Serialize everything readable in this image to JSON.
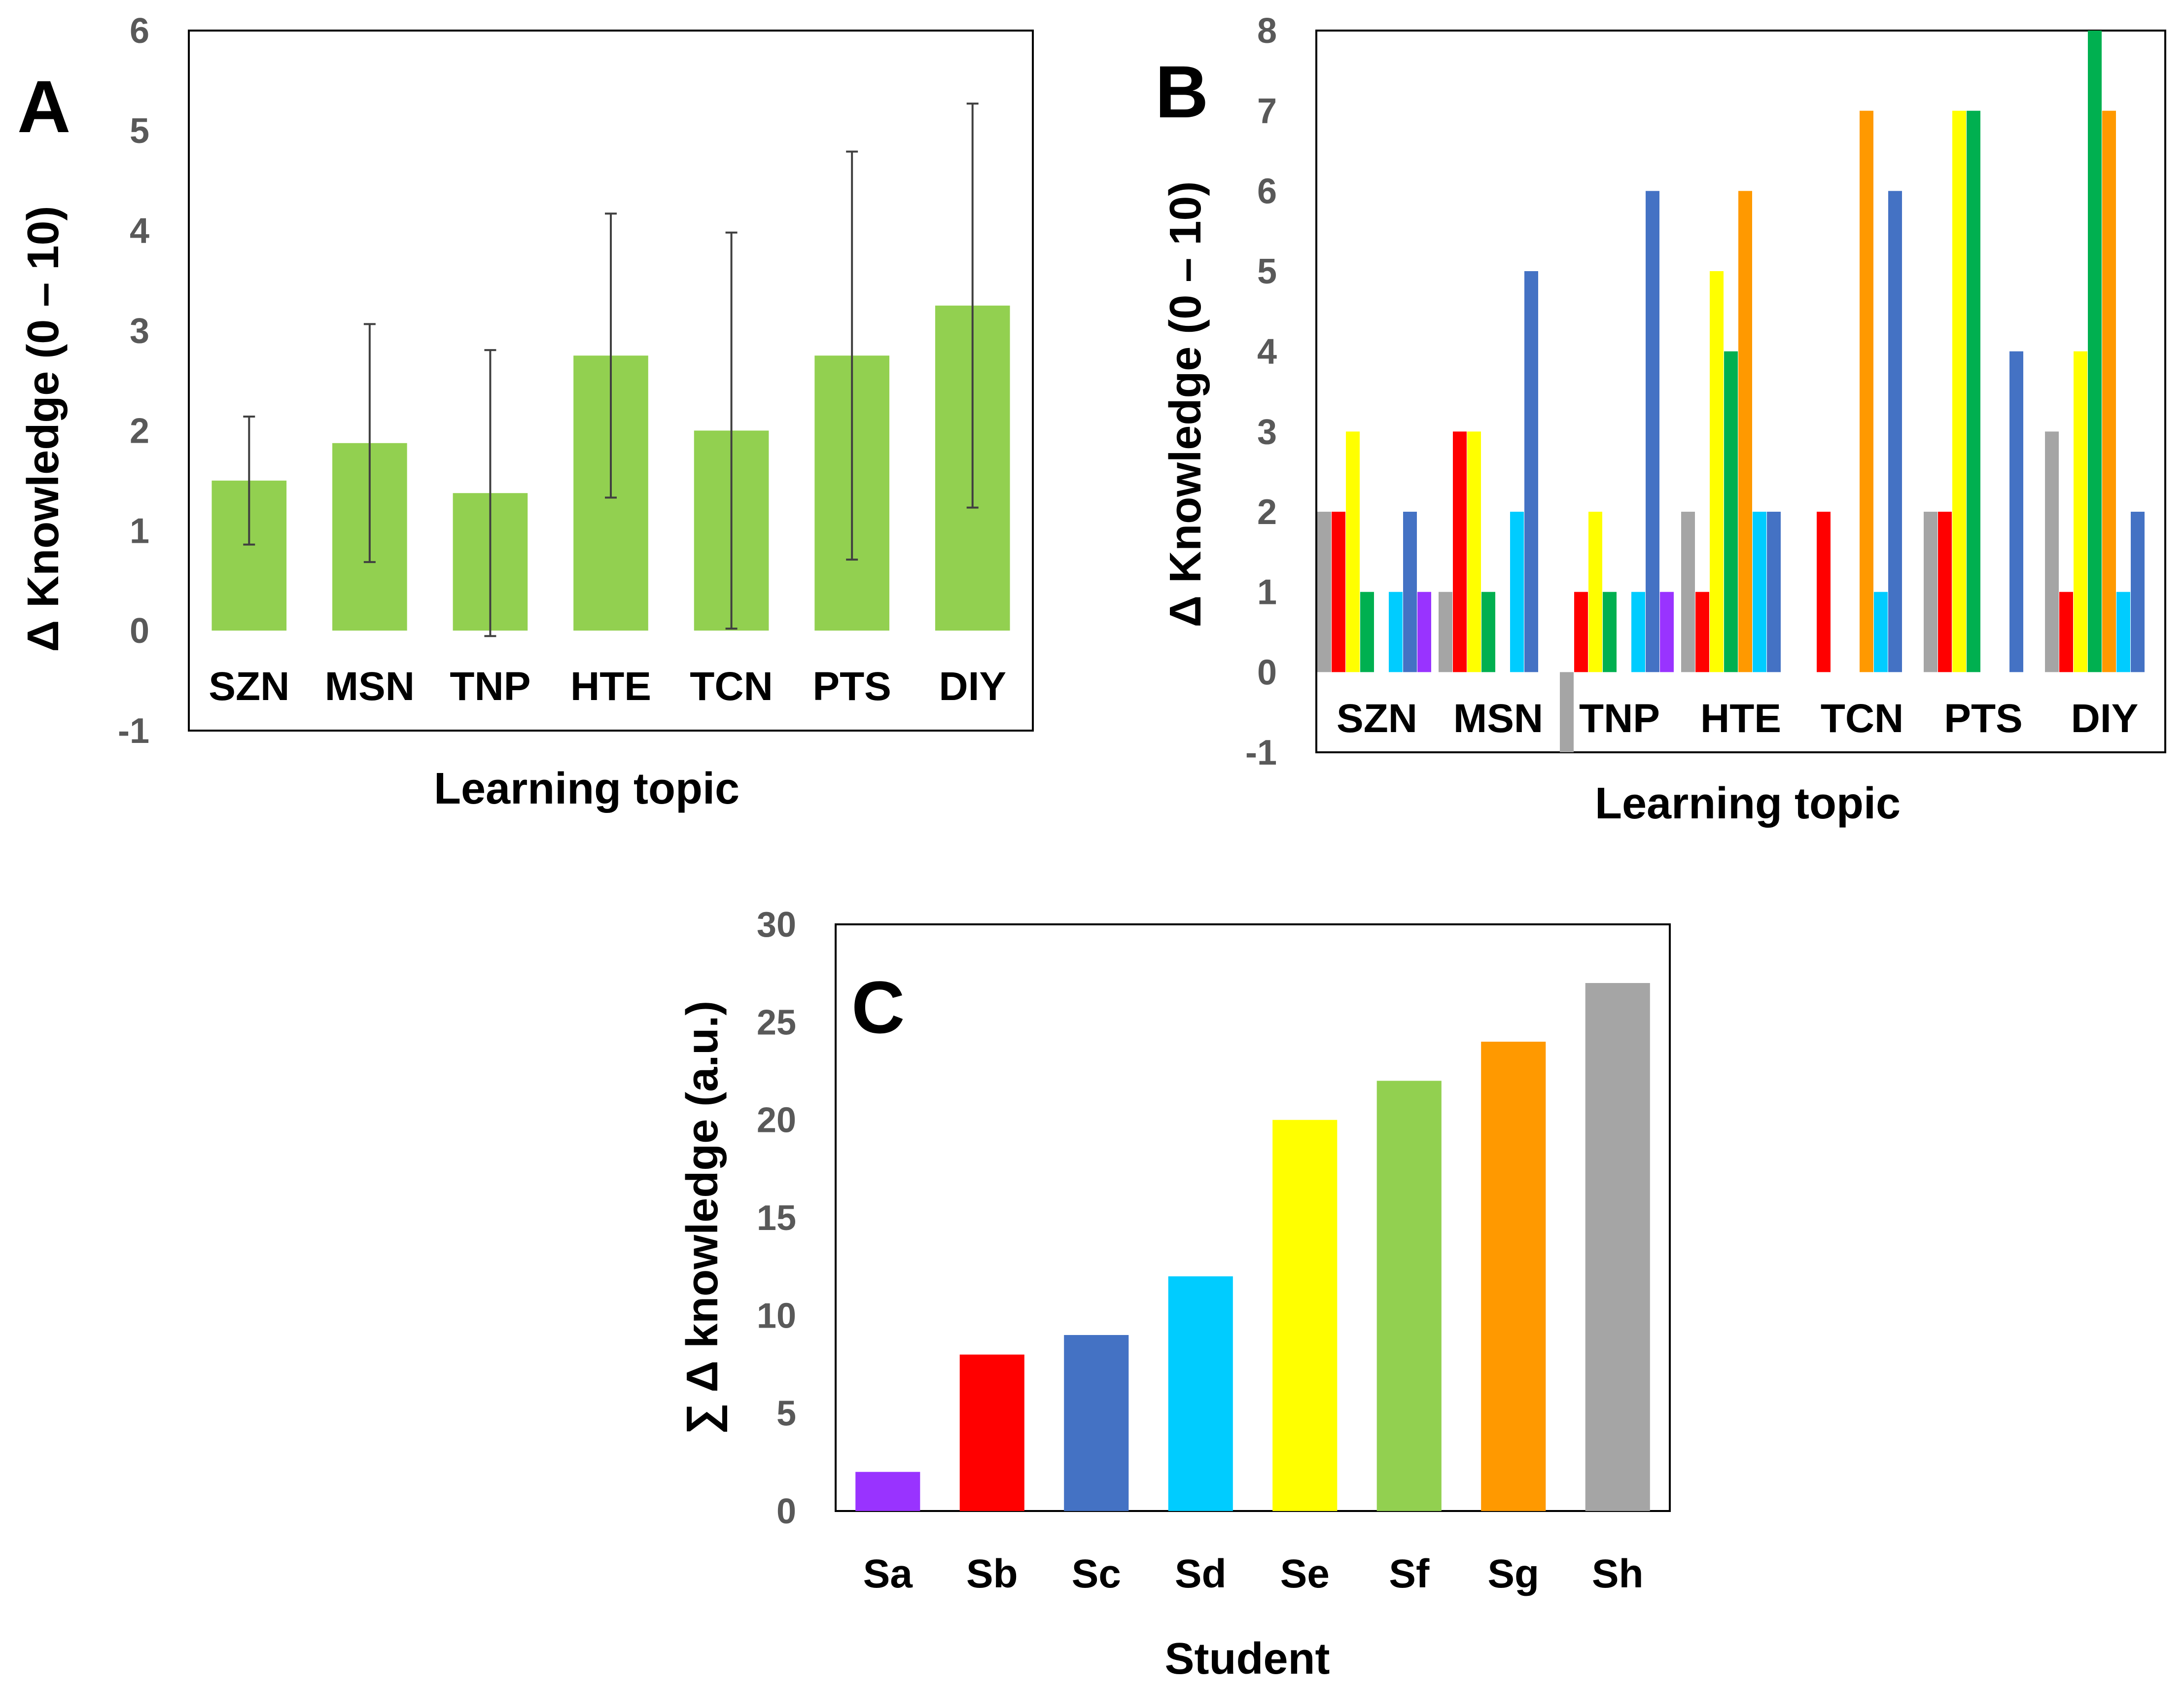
{
  "panels": [
    {
      "letter": "A",
      "chart_data": {
        "type": "bar",
        "title": "",
        "xlabel": "Learning topic",
        "ylabel": "Δ Knowledge (0 – 10)",
        "ylim": [
          -1,
          6
        ],
        "yticks": [
          -1,
          0,
          1,
          2,
          3,
          4,
          5,
          6
        ],
        "categories": [
          "SZN",
          "MSN",
          "TNP",
          "HTE",
          "TCN",
          "PTS",
          "DIY"
        ],
        "values": [
          1.5,
          1.875,
          1.375,
          2.75,
          2.0,
          2.75,
          3.25
        ],
        "error_bars": [
          0.64,
          1.19,
          1.43,
          1.42,
          1.98,
          2.04,
          2.02
        ],
        "color": "#92d050",
        "grid": false,
        "legend": "none"
      }
    },
    {
      "letter": "B",
      "chart_data": {
        "type": "bar",
        "title": "",
        "xlabel": "Learning topic",
        "ylabel": "Δ Knowledge (0 – 10)",
        "ylim": [
          -1,
          8
        ],
        "yticks": [
          -1,
          0,
          1,
          2,
          3,
          4,
          5,
          6,
          7,
          8
        ],
        "categories": [
          "SZN",
          "MSN",
          "TNP",
          "HTE",
          "TCN",
          "PTS",
          "DIY"
        ],
        "series": [
          {
            "color": "#a5a5a5",
            "values": [
              2,
              1,
              -1,
              2,
              0,
              2,
              3
            ]
          },
          {
            "color": "#ff0000",
            "values": [
              2,
              3,
              1,
              1,
              2,
              2,
              1
            ]
          },
          {
            "color": "#ffff00",
            "values": [
              3,
              3,
              2,
              5,
              0,
              7,
              4
            ]
          },
          {
            "color": "#00b050",
            "values": [
              1,
              1,
              1,
              4,
              0,
              7,
              8
            ]
          },
          {
            "color": "#ff9900",
            "values": [
              0,
              0,
              0,
              6,
              7,
              0,
              7
            ]
          },
          {
            "color": "#00ccff",
            "values": [
              1,
              2,
              1,
              2,
              1,
              0,
              1
            ]
          },
          {
            "color": "#4472c4",
            "values": [
              2,
              5,
              6,
              2,
              6,
              4,
              2
            ]
          },
          {
            "color": "#9933ff",
            "values": [
              1,
              0,
              1,
              0,
              0,
              0,
              0
            ]
          }
        ],
        "grid": false,
        "legend": "none"
      }
    },
    {
      "letter": "C",
      "chart_data": {
        "type": "bar",
        "title": "",
        "xlabel": "Student",
        "ylabel": "∑ Δ knowledge (a.u.)",
        "ylim": [
          0,
          30
        ],
        "yticks": [
          0,
          5,
          10,
          15,
          20,
          25,
          30
        ],
        "categories": [
          "Sa",
          "Sb",
          "Sc",
          "Sd",
          "Se",
          "Sf",
          "Sg",
          "Sh"
        ],
        "values": [
          2,
          8,
          9,
          12,
          20,
          22,
          24,
          27
        ],
        "colors": [
          "#9933ff",
          "#ff0000",
          "#4472c4",
          "#00ccff",
          "#ffff00",
          "#92d050",
          "#ff9900",
          "#a5a5a5"
        ],
        "grid": false,
        "legend": "none"
      }
    }
  ]
}
